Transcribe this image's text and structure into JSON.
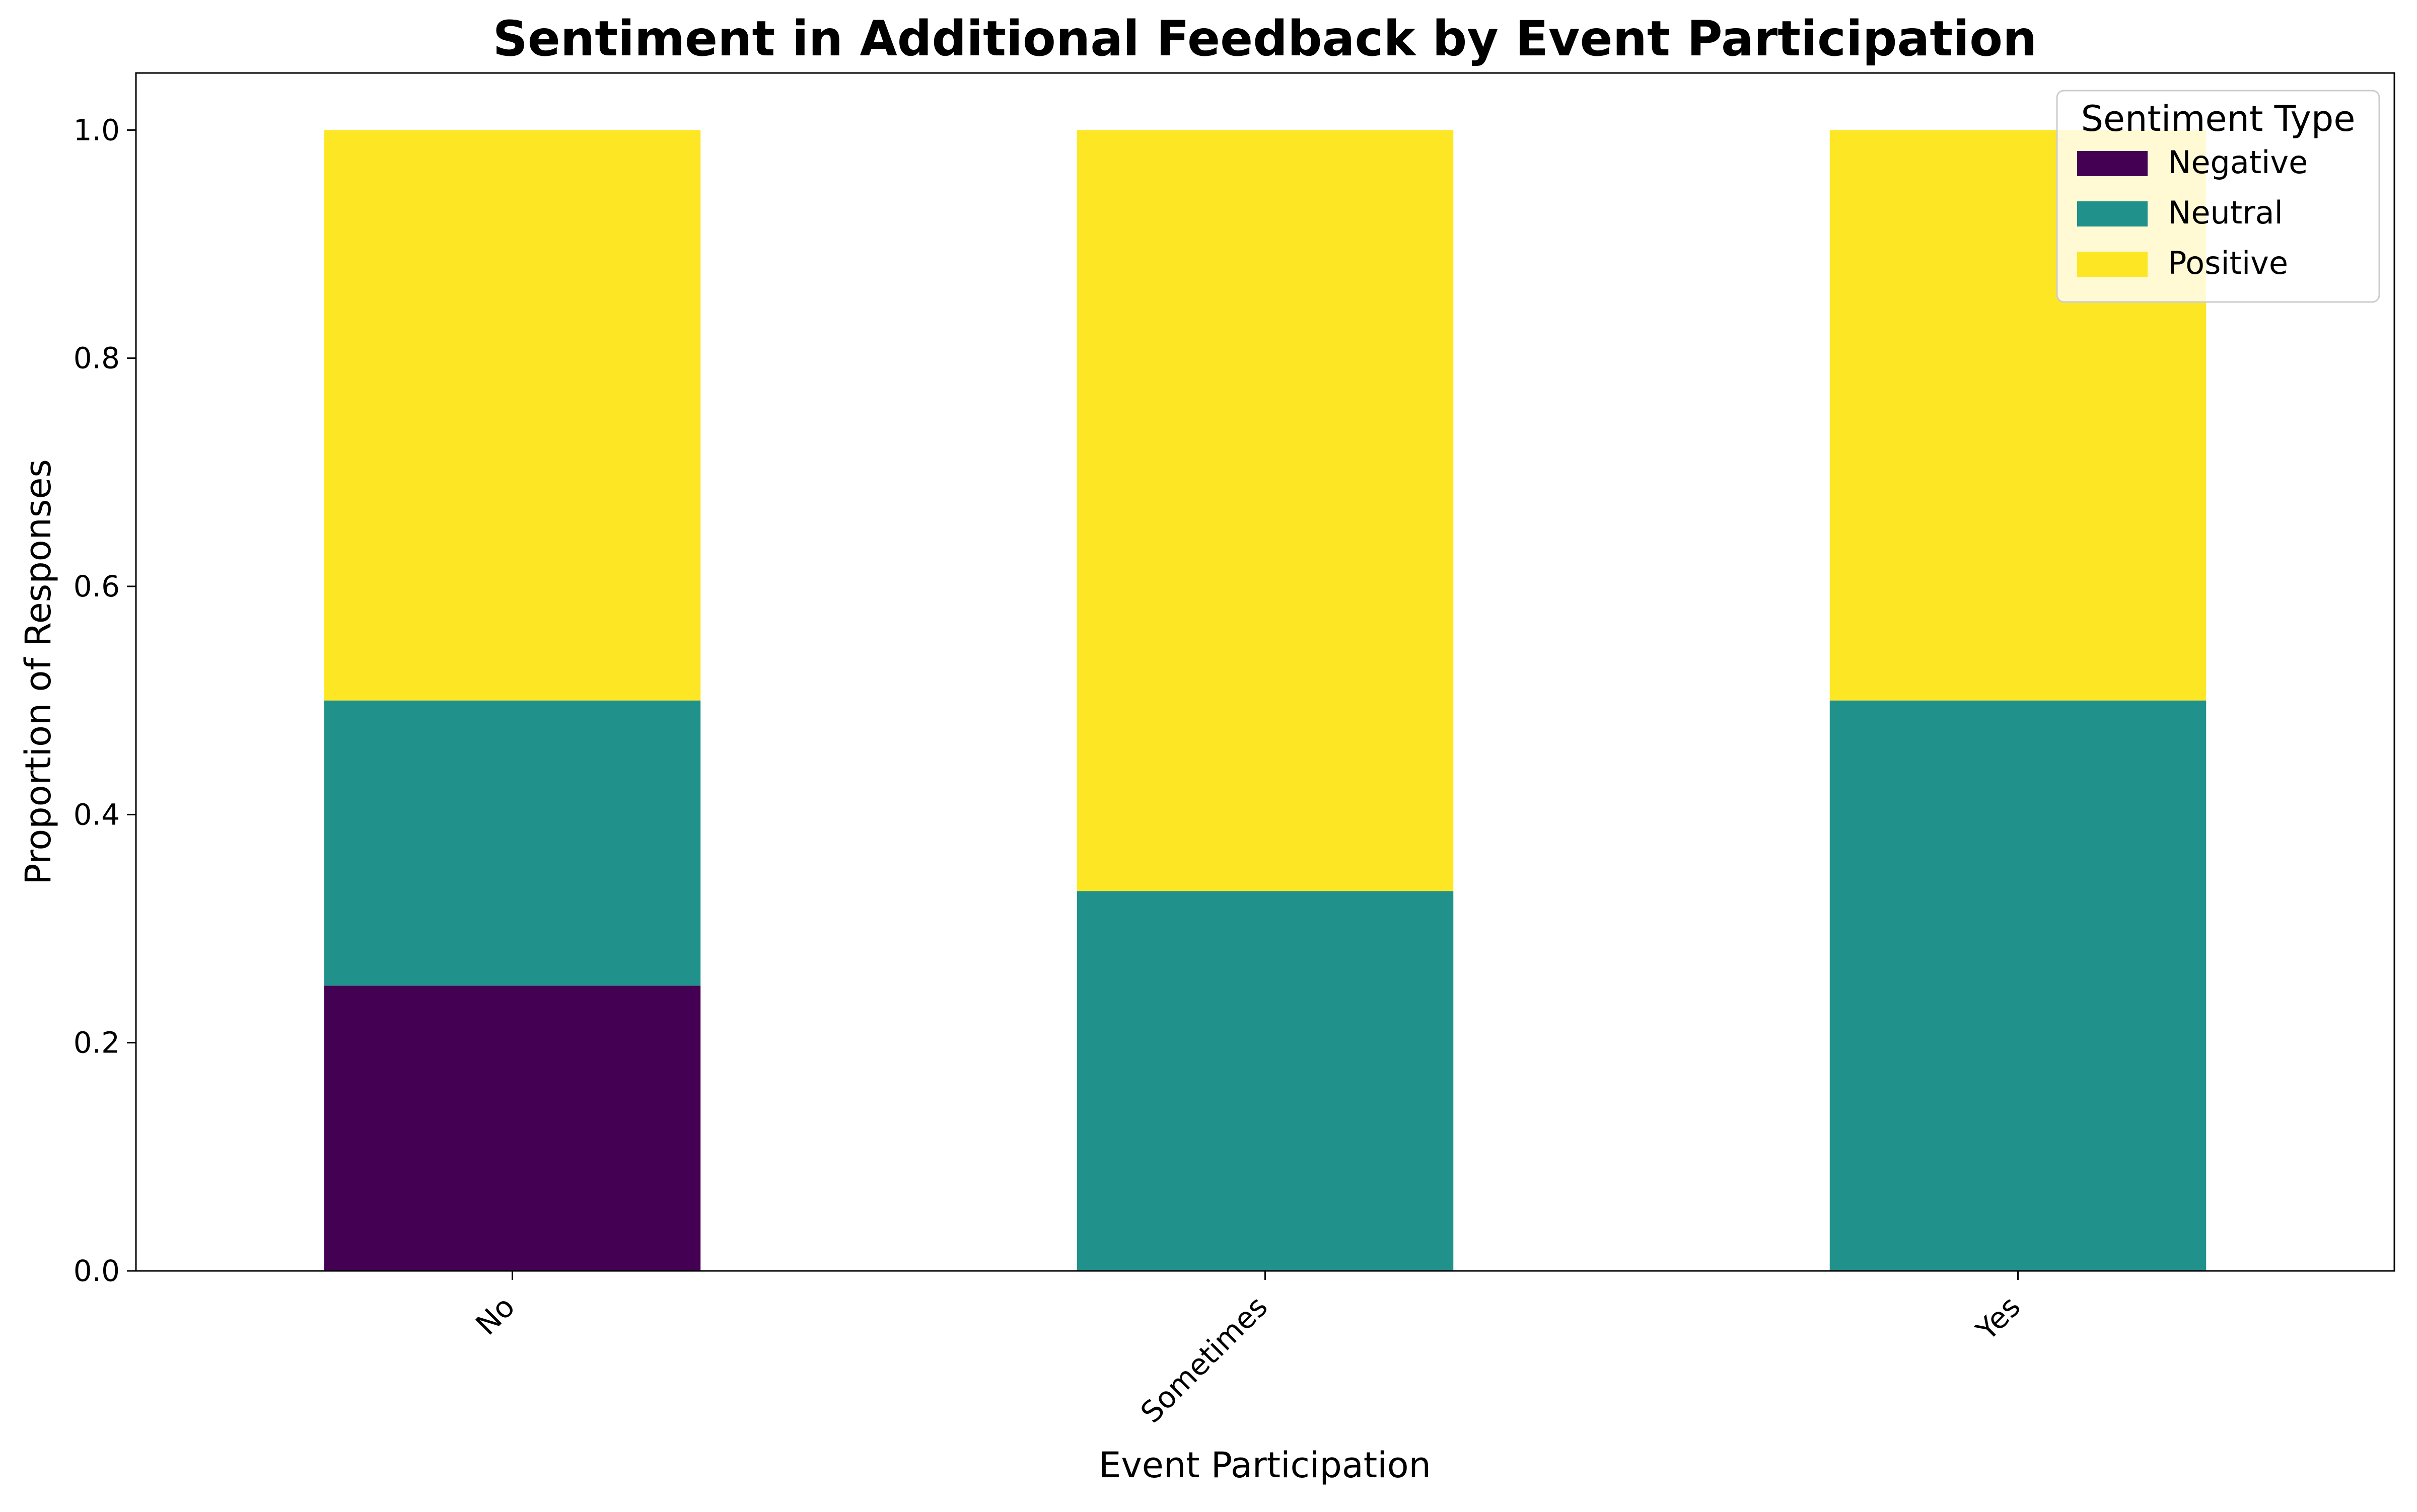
{
  "chart_data": {
    "type": "bar",
    "stacked": true,
    "title": "Sentiment in Additional Feedback by Event Participation",
    "xlabel": "Event Participation",
    "ylabel": "Proportion of Responses",
    "categories": [
      "No",
      "Sometimes",
      "Yes"
    ],
    "series": [
      {
        "name": "Negative",
        "color": "#440154",
        "values": [
          0.25,
          0.0,
          0.0
        ]
      },
      {
        "name": "Neutral",
        "color": "#21918c",
        "values": [
          0.25,
          0.333,
          0.5
        ]
      },
      {
        "name": "Positive",
        "color": "#fde725",
        "values": [
          0.5,
          0.667,
          0.5
        ]
      }
    ],
    "ylim": [
      0,
      1.05
    ],
    "yticks": [
      0.0,
      0.2,
      0.4,
      0.6,
      0.8,
      1.0
    ],
    "ytick_labels": [
      "0.0",
      "0.2",
      "0.4",
      "0.6",
      "0.8",
      "1.0"
    ],
    "grid": false,
    "legend": {
      "title": "Sentiment Type",
      "placement": "upper-right"
    }
  }
}
